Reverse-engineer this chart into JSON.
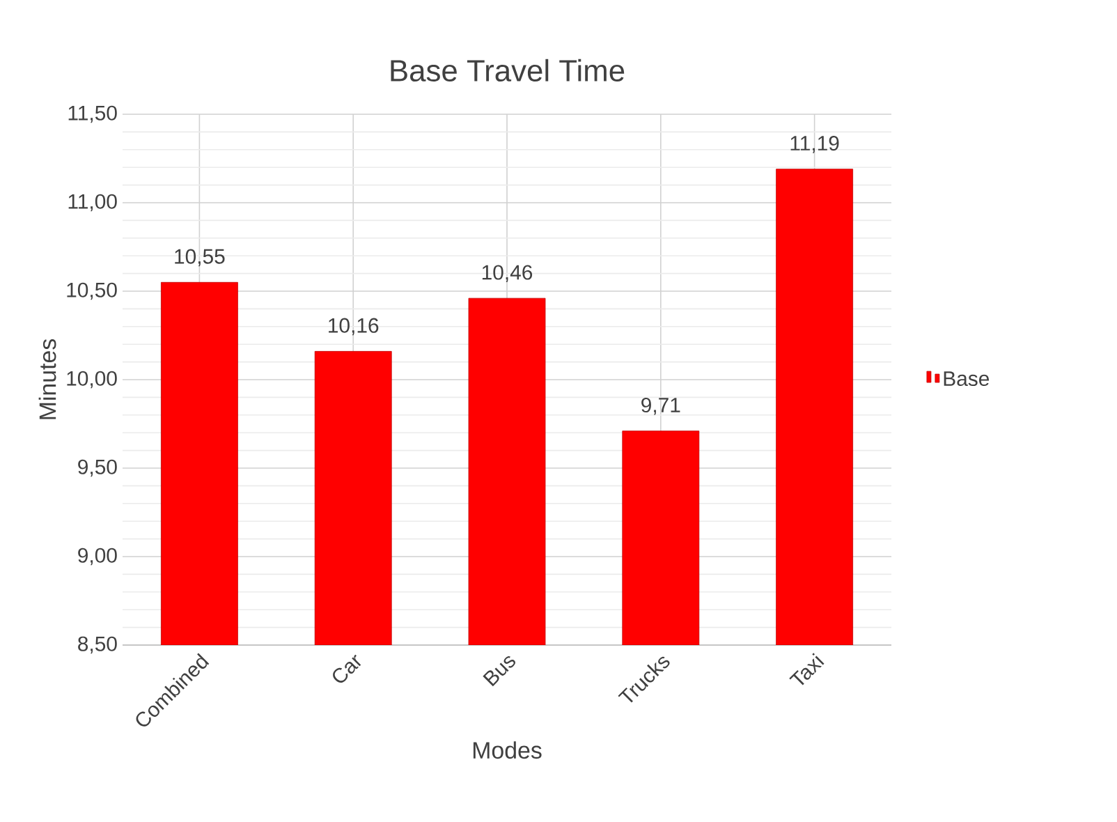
{
  "chart_data": {
    "type": "bar",
    "title": "Base Travel Time",
    "xlabel": "Modes",
    "ylabel": "Minutes",
    "categories": [
      "Combined",
      "Car",
      "Bus",
      "Trucks",
      "Taxi"
    ],
    "series": [
      {
        "name": "Base",
        "color": "#ff0000",
        "values": [
          10.55,
          10.16,
          10.46,
          9.71,
          11.19
        ],
        "value_labels": [
          "10,55",
          "10,16",
          "10,46",
          "9,71",
          "11,19"
        ]
      }
    ],
    "ylim": [
      8.5,
      11.5
    ],
    "yticks": [
      {
        "value": 8.5,
        "label": "8,50"
      },
      {
        "value": 9.0,
        "label": "9,00"
      },
      {
        "value": 9.5,
        "label": "9,50"
      },
      {
        "value": 10.0,
        "label": "10,00"
      },
      {
        "value": 10.5,
        "label": "10,50"
      },
      {
        "value": 11.0,
        "label": "11,00"
      },
      {
        "value": 11.5,
        "label": "11,50"
      }
    ],
    "grid": true,
    "legend": "right"
  }
}
